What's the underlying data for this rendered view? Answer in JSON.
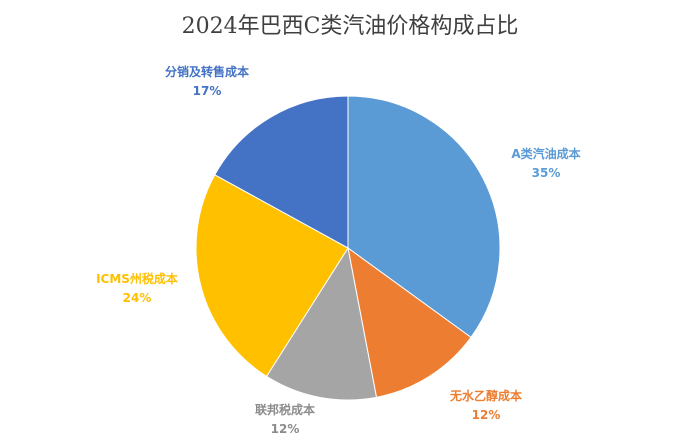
{
  "chart_data": {
    "type": "pie",
    "title": "2024年巴西C类汽油价格构成占比",
    "legend": "none",
    "slices": [
      {
        "label": "A类汽油成本",
        "value": 35,
        "value_label": "35%",
        "color": "#5B9BD5"
      },
      {
        "label": "无水乙醇成本",
        "value": 12,
        "value_label": "12%",
        "color": "#ED7D31"
      },
      {
        "label": "联邦税成本",
        "value": 12,
        "value_label": "12%",
        "color": "#A5A5A5"
      },
      {
        "label": "ICMS州税成本",
        "value": 24,
        "value_label": "24%",
        "color": "#FFC000"
      },
      {
        "label": "分销及转售成本",
        "value": 17,
        "value_label": "17%",
        "color": "#4472C4"
      }
    ]
  }
}
